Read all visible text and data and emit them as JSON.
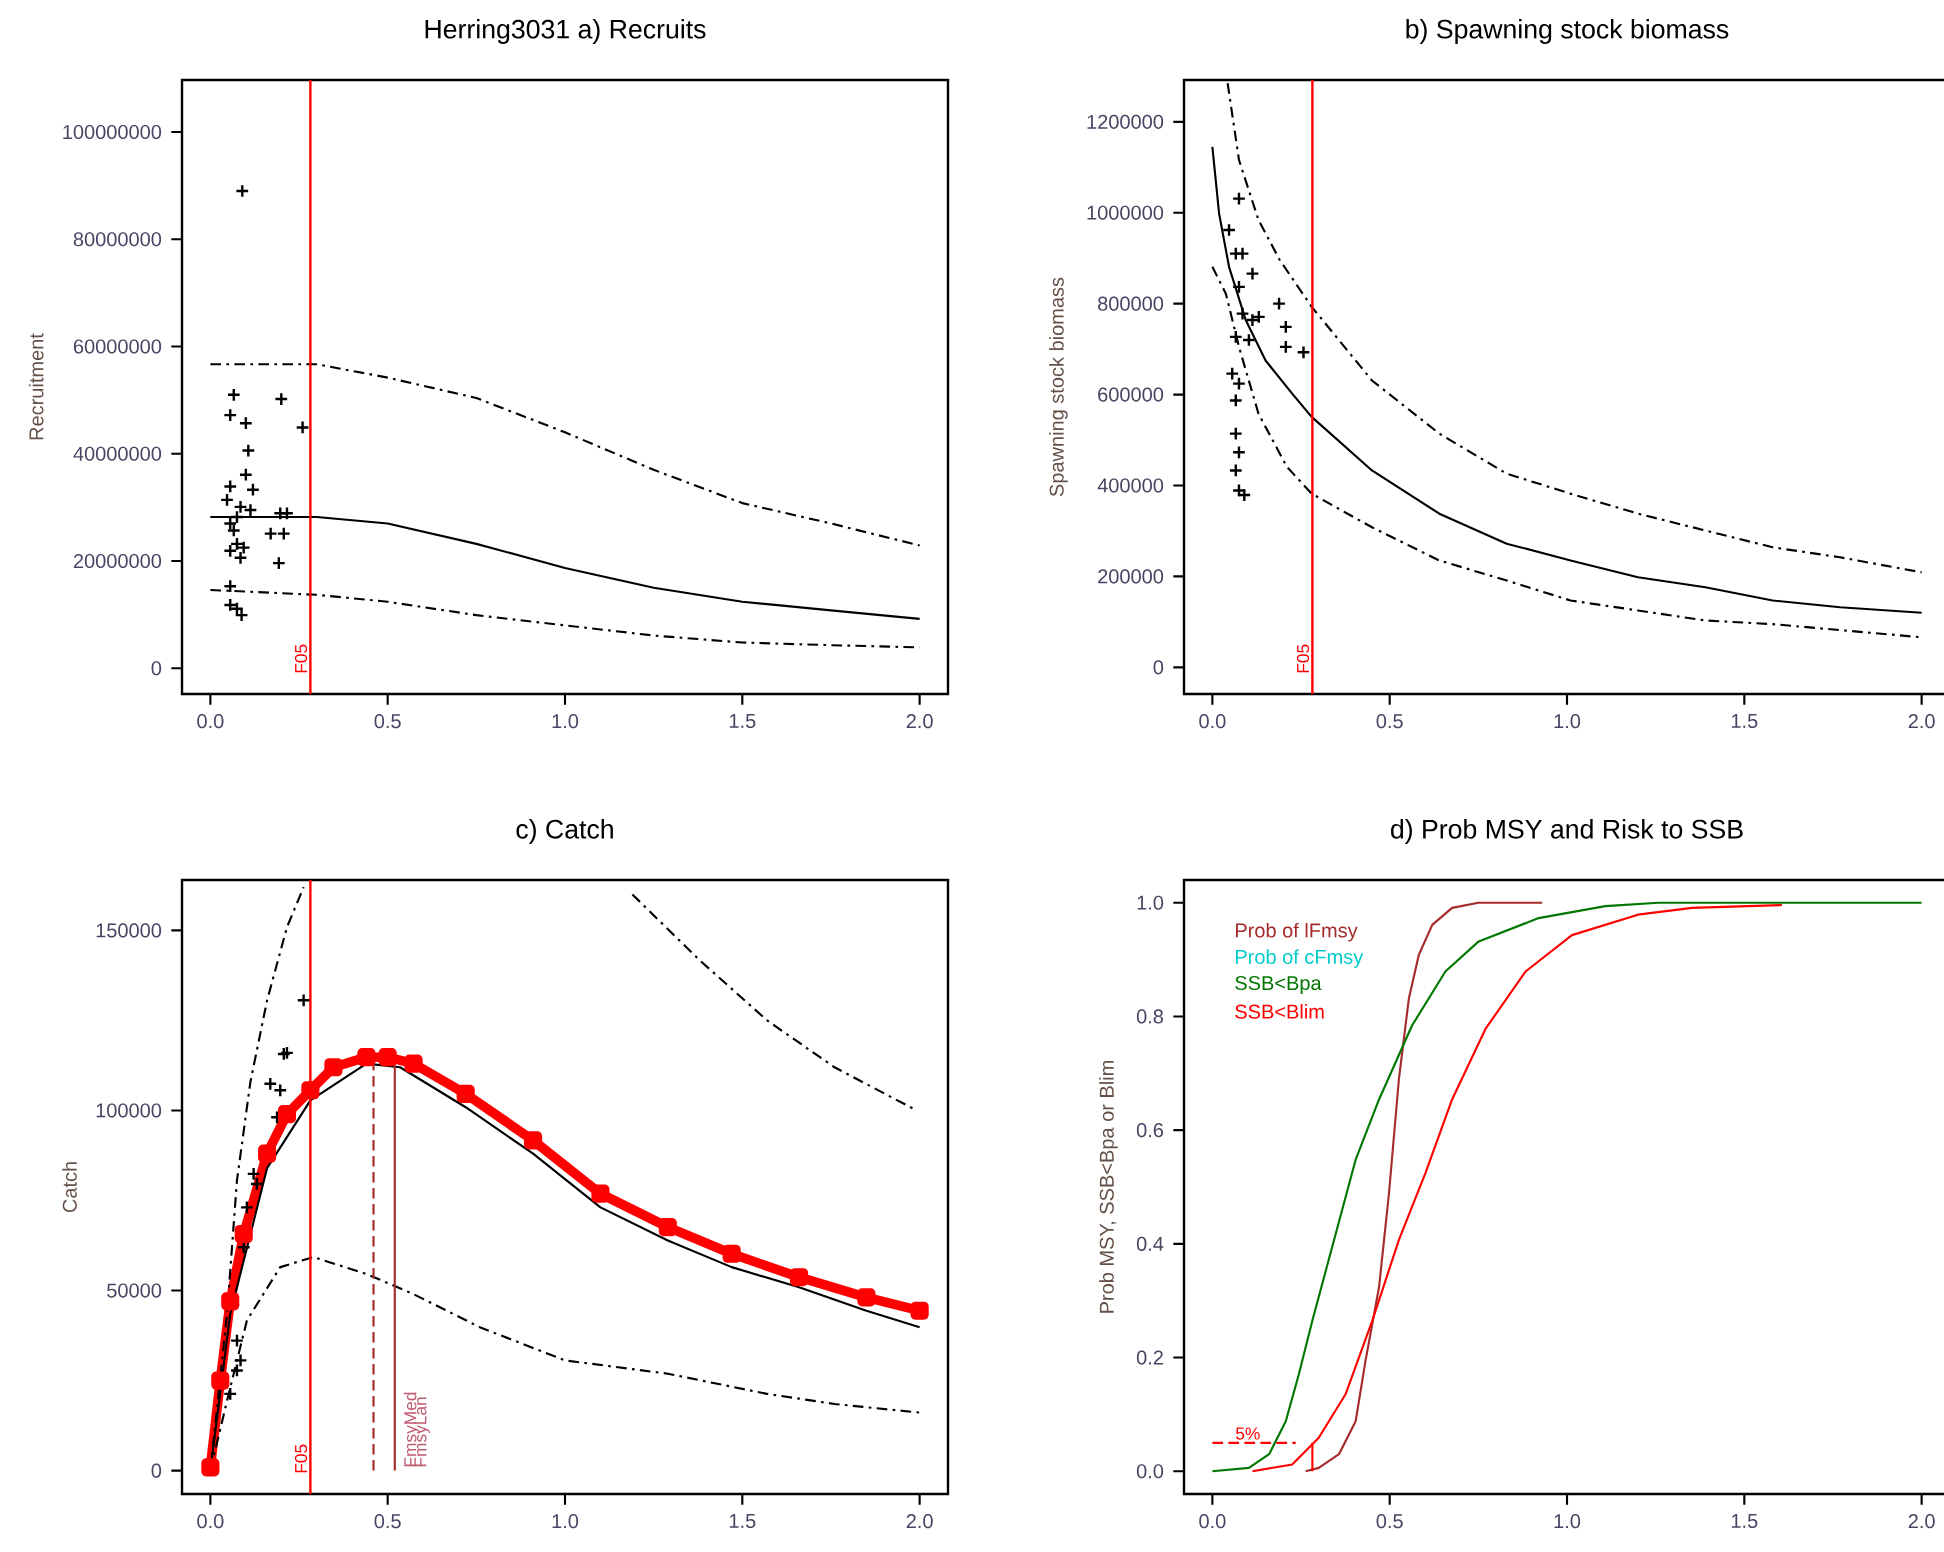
{
  "chart_data": [
    {
      "type": "line",
      "title": "Herring3031  a) Recruits",
      "ylabel": "Recruitment",
      "xlim": [
        -0.08,
        2.08
      ],
      "ylim": [
        -4800000,
        109700000
      ],
      "xticks": [
        {
          "value": 0,
          "label": "0.0"
        },
        {
          "value": 0.5,
          "label": "0.5"
        },
        {
          "value": 1,
          "label": "1.0"
        },
        {
          "value": 1.5,
          "label": "1.5"
        },
        {
          "value": 2,
          "label": "2.0"
        }
      ],
      "yticks": [
        0,
        20000000,
        40000000,
        60000000,
        80000000,
        100000000
      ],
      "ref_lines": [
        {
          "axis": "x",
          "value": 0.282,
          "label": "F05",
          "color": "#ff0000"
        }
      ],
      "series": [
        {
          "type": "scatter",
          "marker": "cross",
          "color": "#000000",
          "x": [
            0.09,
            0.066,
            0.056,
            0.1,
            0.2,
            0.26,
            0.107,
            0.1,
            0.056,
            0.12,
            0.047,
            0.085,
            0.113,
            0.075,
            0.197,
            0.216,
            0.056,
            0.066,
            0.17,
            0.207,
            0.075,
            0.094,
            0.056,
            0.085,
            0.193,
            0.056,
            0.056,
            0.075,
            0.088
          ],
          "values": [
            89000000,
            51000000,
            47200000,
            45700000,
            50200000,
            44900000,
            40600000,
            36100000,
            33900000,
            33300000,
            31400000,
            30100000,
            29500000,
            28200000,
            28900000,
            28900000,
            27000000,
            25700000,
            25100000,
            25100000,
            23200000,
            22500000,
            21900000,
            20600000,
            19600000,
            15300000,
            11800000,
            11100000,
            9900000
          ]
        },
        {
          "type": "line",
          "line_style": "solid",
          "color": "#000000",
          "x": [
            0,
            0.3,
            0.5,
            0.75,
            1.0,
            1.25,
            1.5,
            1.75,
            2.0
          ],
          "values": [
            28200000,
            28200000,
            27000000,
            23200000,
            18700000,
            15000000,
            12400000,
            10800000,
            9200000
          ]
        },
        {
          "type": "line",
          "line_style": "dashdot",
          "color": "#000000",
          "x": [
            0,
            0.3,
            0.5,
            0.75,
            1.0,
            1.25,
            1.5,
            1.75,
            2.0
          ],
          "values": [
            56700000,
            56700000,
            54200000,
            50400000,
            44000000,
            37000000,
            30800000,
            27000000,
            22900000
          ]
        },
        {
          "type": "line",
          "line_style": "dashdot",
          "color": "#000000",
          "x": [
            0,
            0.3,
            0.5,
            0.75,
            1.0,
            1.25,
            1.5,
            1.75,
            2.0
          ],
          "values": [
            14600000,
            13700000,
            12400000,
            9900000,
            8000000,
            6100000,
            4800000,
            4300000,
            3900000
          ]
        }
      ]
    },
    {
      "type": "line",
      "title": "b) Spawning stock biomass",
      "ylabel": "Spawning stock biomass",
      "xlim": [
        -0.08,
        2.08
      ],
      "ylim": [
        -58700,
        1292000
      ],
      "xticks": [
        {
          "value": 0,
          "label": "0.0"
        },
        {
          "value": 0.5,
          "label": "0.5"
        },
        {
          "value": 1,
          "label": "1.0"
        },
        {
          "value": 1.5,
          "label": "1.5"
        },
        {
          "value": 2,
          "label": "2.0"
        }
      ],
      "yticks": [
        0,
        200000,
        400000,
        600000,
        800000,
        1000000,
        1200000
      ],
      "ref_lines": [
        {
          "axis": "x",
          "value": 0.282,
          "label": "F05",
          "color": "#ff0000"
        }
      ],
      "series": [
        {
          "type": "scatter",
          "marker": "cross",
          "color": "#000000",
          "x": [
            0.075,
            0.047,
            0.066,
            0.085,
            0.113,
            0.075,
            0.188,
            0.085,
            0.131,
            0.113,
            0.207,
            0.066,
            0.103,
            0.207,
            0.257,
            0.056,
            0.075,
            0.066,
            0.066,
            0.075,
            0.066,
            0.075,
            0.09
          ],
          "values": [
            1031000,
            962000,
            910000,
            910000,
            866000,
            837000,
            800000,
            778000,
            771000,
            764000,
            749000,
            727000,
            720000,
            705000,
            693000,
            646000,
            624000,
            587000,
            514000,
            473000,
            433000,
            389000,
            379000
          ]
        },
        {
          "type": "line",
          "line_style": "solid",
          "color": "#000000",
          "x": [
            0,
            0.019,
            0.047,
            0.094,
            0.15,
            0.225,
            0.28,
            0.45,
            0.64,
            0.83,
            1.01,
            1.2,
            1.39,
            1.58,
            1.77,
            2.0
          ],
          "values": [
            1145000,
            998000,
            881000,
            764000,
            675000,
            602000,
            551000,
            433000,
            338000,
            272000,
            235000,
            198000,
            176000,
            147000,
            132000,
            120000
          ]
        },
        {
          "type": "line",
          "line_style": "dashdot",
          "color": "#000000",
          "x": [
            0.043,
            0.075,
            0.13,
            0.19,
            0.28,
            0.45,
            0.64,
            0.83,
            1.01,
            1.2,
            1.39,
            1.58,
            1.77,
            2.0
          ],
          "values": [
            1285000,
            1116000,
            984000,
            896000,
            793000,
            631000,
            514000,
            426000,
            382000,
            338000,
            301000,
            264000,
            242000,
            209000
          ]
        },
        {
          "type": "line",
          "line_style": "dashdot",
          "color": "#000000",
          "x": [
            0,
            0.038,
            0.075,
            0.13,
            0.21,
            0.28,
            0.45,
            0.64,
            0.83,
            1.01,
            1.2,
            1.39,
            1.58,
            2.0
          ],
          "values": [
            881000,
            822000,
            705000,
            558000,
            441000,
            382000,
            308000,
            235000,
            191000,
            147000,
            125000,
            103000,
            95000,
            66000
          ]
        }
      ]
    },
    {
      "type": "line",
      "title": "c) Catch",
      "ylabel": "Catch",
      "xlim": [
        -0.08,
        2.08
      ],
      "ylim": [
        -6500,
        164000
      ],
      "xticks": [
        {
          "value": 0,
          "label": "0.0"
        },
        {
          "value": 0.5,
          "label": "0.5"
        },
        {
          "value": 1,
          "label": "1.0"
        },
        {
          "value": 1.5,
          "label": "1.5"
        },
        {
          "value": 2,
          "label": "2.0"
        }
      ],
      "yticks": [
        0,
        50000,
        100000,
        150000
      ],
      "ref_lines": [
        {
          "axis": "x",
          "value": 0.282,
          "label": "F05",
          "color": "#ff0000"
        }
      ],
      "annotations": [
        "FmsyMed",
        "FmsyLan"
      ],
      "series": [
        {
          "type": "scatter",
          "marker": "cross",
          "color": "#000000",
          "x": [
            0.263,
            0.207,
            0.216,
            0.169,
            0.197,
            0.188,
            0.122,
            0.131,
            0.103,
            0.094,
            0.075,
            0.085,
            0.075,
            0.056
          ],
          "values": [
            130600,
            115700,
            116000,
            107400,
            105600,
            98100,
            82400,
            79600,
            73100,
            62000,
            36100,
            30600,
            27800,
            21300
          ]
        },
        {
          "type": "line",
          "marker": "square",
          "line_style": "solid",
          "color": "#ff0000",
          "x": [
            0,
            0.028,
            0.056,
            0.094,
            0.16,
            0.216,
            0.282,
            0.347,
            0.44,
            0.5,
            0.573,
            0.72,
            0.91,
            1.1,
            1.29,
            1.47,
            1.66,
            1.85,
            2.0
          ],
          "values": [
            900,
            25000,
            47000,
            65700,
            88000,
            99000,
            105600,
            112000,
            114800,
            114800,
            113000,
            104600,
            91700,
            76900,
            67600,
            60200,
            53700,
            48100,
            44400
          ]
        },
        {
          "type": "line",
          "line_style": "solid",
          "color": "#000000",
          "x": [
            0,
            0.056,
            0.16,
            0.282,
            0.44,
            0.535,
            0.72,
            0.91,
            1.1,
            1.29,
            1.47,
            1.66,
            1.85,
            2.0
          ],
          "values": [
            0,
            43500,
            84000,
            102800,
            113000,
            112000,
            100900,
            88000,
            73100,
            63900,
            56500,
            50900,
            44400,
            39800
          ]
        },
        {
          "type": "line",
          "line_style": "dashdot",
          "color": "#000000",
          "x": [
            0,
            0.047,
            0.075,
            0.113,
            0.16,
            0.216,
            0.263,
            0.7,
            1.19,
            1.38,
            1.57,
            1.76,
            1.98
          ],
          "values": [
            0,
            43500,
            80600,
            108000,
            130600,
            150900,
            162000,
            null,
            160000,
            141700,
            125000,
            112000,
            100600
          ]
        },
        {
          "type": "line",
          "line_style": "dashdot",
          "color": "#000000",
          "x": [
            0,
            0.047,
            0.103,
            0.197,
            0.29,
            0.44,
            0.573,
            0.76,
            1.0,
            1.29,
            1.57,
            1.76,
            2.0
          ],
          "values": [
            0,
            19400,
            41700,
            56500,
            59300,
            54600,
            49000,
            39800,
            30600,
            26900,
            21300,
            18500,
            16100
          ]
        },
        {
          "type": "line",
          "line_style": "dashed",
          "color": "#a52a2a",
          "x": [
            0.46,
            0.46
          ],
          "values": [
            0,
            113000
          ]
        },
        {
          "type": "line",
          "line_style": "solid",
          "color": "#a52a2a",
          "x": [
            0.52,
            0.52
          ],
          "values": [
            0,
            113000
          ]
        }
      ]
    },
    {
      "type": "line",
      "title": "d) Prob MSY and Risk to SSB",
      "ylabel": "Prob MSY, SSB<Bpa or Blim",
      "xlim": [
        -0.08,
        2.08
      ],
      "ylim": [
        -0.04,
        1.04
      ],
      "legend": "top left",
      "xticks": [
        {
          "value": 0,
          "label": "0.0"
        },
        {
          "value": 0.5,
          "label": "0.5"
        },
        {
          "value": 1,
          "label": "1.0"
        },
        {
          "value": 1.5,
          "label": "1.5"
        },
        {
          "value": 2,
          "label": "2.0"
        }
      ],
      "yticks": [
        {
          "value": 0,
          "label": "0.0"
        },
        {
          "value": 0.2,
          "label": "0.2"
        },
        {
          "value": 0.4,
          "label": "0.4"
        },
        {
          "value": 0.6,
          "label": "0.6"
        },
        {
          "value": 0.8,
          "label": "0.8"
        },
        {
          "value": 1,
          "label": "1.0"
        }
      ],
      "annotations": [
        {
          "text": "5%",
          "x": 0.1,
          "y": 0.05
        }
      ],
      "series": [
        {
          "type": "line",
          "name": "Prob of lFmsy",
          "line_style": "solid",
          "color": "#a52a2a",
          "x": [
            0.263,
            0.3,
            0.357,
            0.404,
            0.432,
            0.47,
            0.498,
            0.526,
            0.554,
            0.582,
            0.62,
            0.676,
            0.75,
            0.93
          ],
          "values": [
            0,
            0.006,
            0.03,
            0.088,
            0.195,
            0.324,
            0.489,
            0.69,
            0.831,
            0.908,
            0.961,
            0.991,
            1,
            1
          ]
        },
        {
          "type": "line",
          "name": "Prob of cFmsy",
          "color": "#00cccc"
        },
        {
          "type": "line",
          "name": "SSB<Bpa",
          "line_style": "solid",
          "color": "#007700",
          "x": [
            0,
            0.103,
            0.16,
            0.207,
            0.244,
            0.282,
            0.338,
            0.404,
            0.47,
            0.563,
            0.657,
            0.751,
            0.92,
            1.108,
            1.258,
            2.0
          ],
          "values": [
            0,
            0.006,
            0.03,
            0.088,
            0.171,
            0.265,
            0.395,
            0.548,
            0.654,
            0.784,
            0.879,
            0.932,
            0.973,
            0.994,
            1,
            1
          ]
        },
        {
          "type": "line",
          "name": "SSB<Blim",
          "line_style": "solid",
          "color": "#ff0000",
          "x": [
            0.113,
            0.225,
            0.3,
            0.376,
            0.451,
            0.526,
            0.601,
            0.676,
            0.77,
            0.883,
            1.014,
            1.2,
            1.352,
            1.606
          ],
          "values": [
            0,
            0.012,
            0.059,
            0.136,
            0.265,
            0.407,
            0.525,
            0.654,
            0.778,
            0.879,
            0.943,
            0.979,
            0.991,
            0.996
          ]
        },
        {
          "type": "line",
          "line_style": "dashed",
          "color": "#ff0000",
          "x": [
            0,
            0.235
          ],
          "values": [
            0.05,
            0.05
          ]
        },
        {
          "type": "line",
          "line_style": "solid",
          "color": "#ff0000",
          "x": [
            0.282,
            0.282
          ],
          "values": [
            0.05,
            0
          ]
        }
      ]
    }
  ]
}
